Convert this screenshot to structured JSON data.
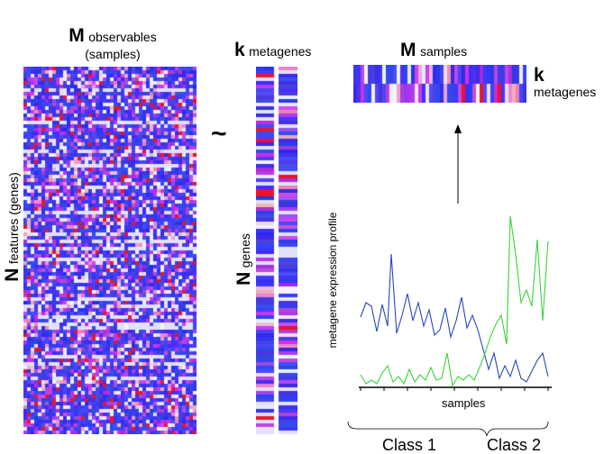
{
  "left_matrix": {
    "title_letter": "M",
    "title_text": "observables",
    "title_sub": "(samples)",
    "side_letter": "N",
    "side_text": "features (genes)"
  },
  "approx_symbol": "~",
  "middle_matrix": {
    "title_letter": "k",
    "title_text": "metagenes",
    "side_letter": "N",
    "side_text": "genes"
  },
  "top_matrix": {
    "title_letter": "M",
    "title_text": "samples",
    "right_letter": "k",
    "right_text": "metagenes"
  },
  "profile_plot": {
    "ylabel": "metagene expression profile",
    "xlabel": "samples",
    "class1": "Class 1",
    "class2": "Class 2"
  },
  "colors": {
    "blue": "#2a2ae8",
    "red": "#e8102a",
    "white": "#f4f4ff",
    "purple": "#8a2ad8",
    "line_blue": "#2848b8",
    "line_green": "#3ad23a"
  }
}
